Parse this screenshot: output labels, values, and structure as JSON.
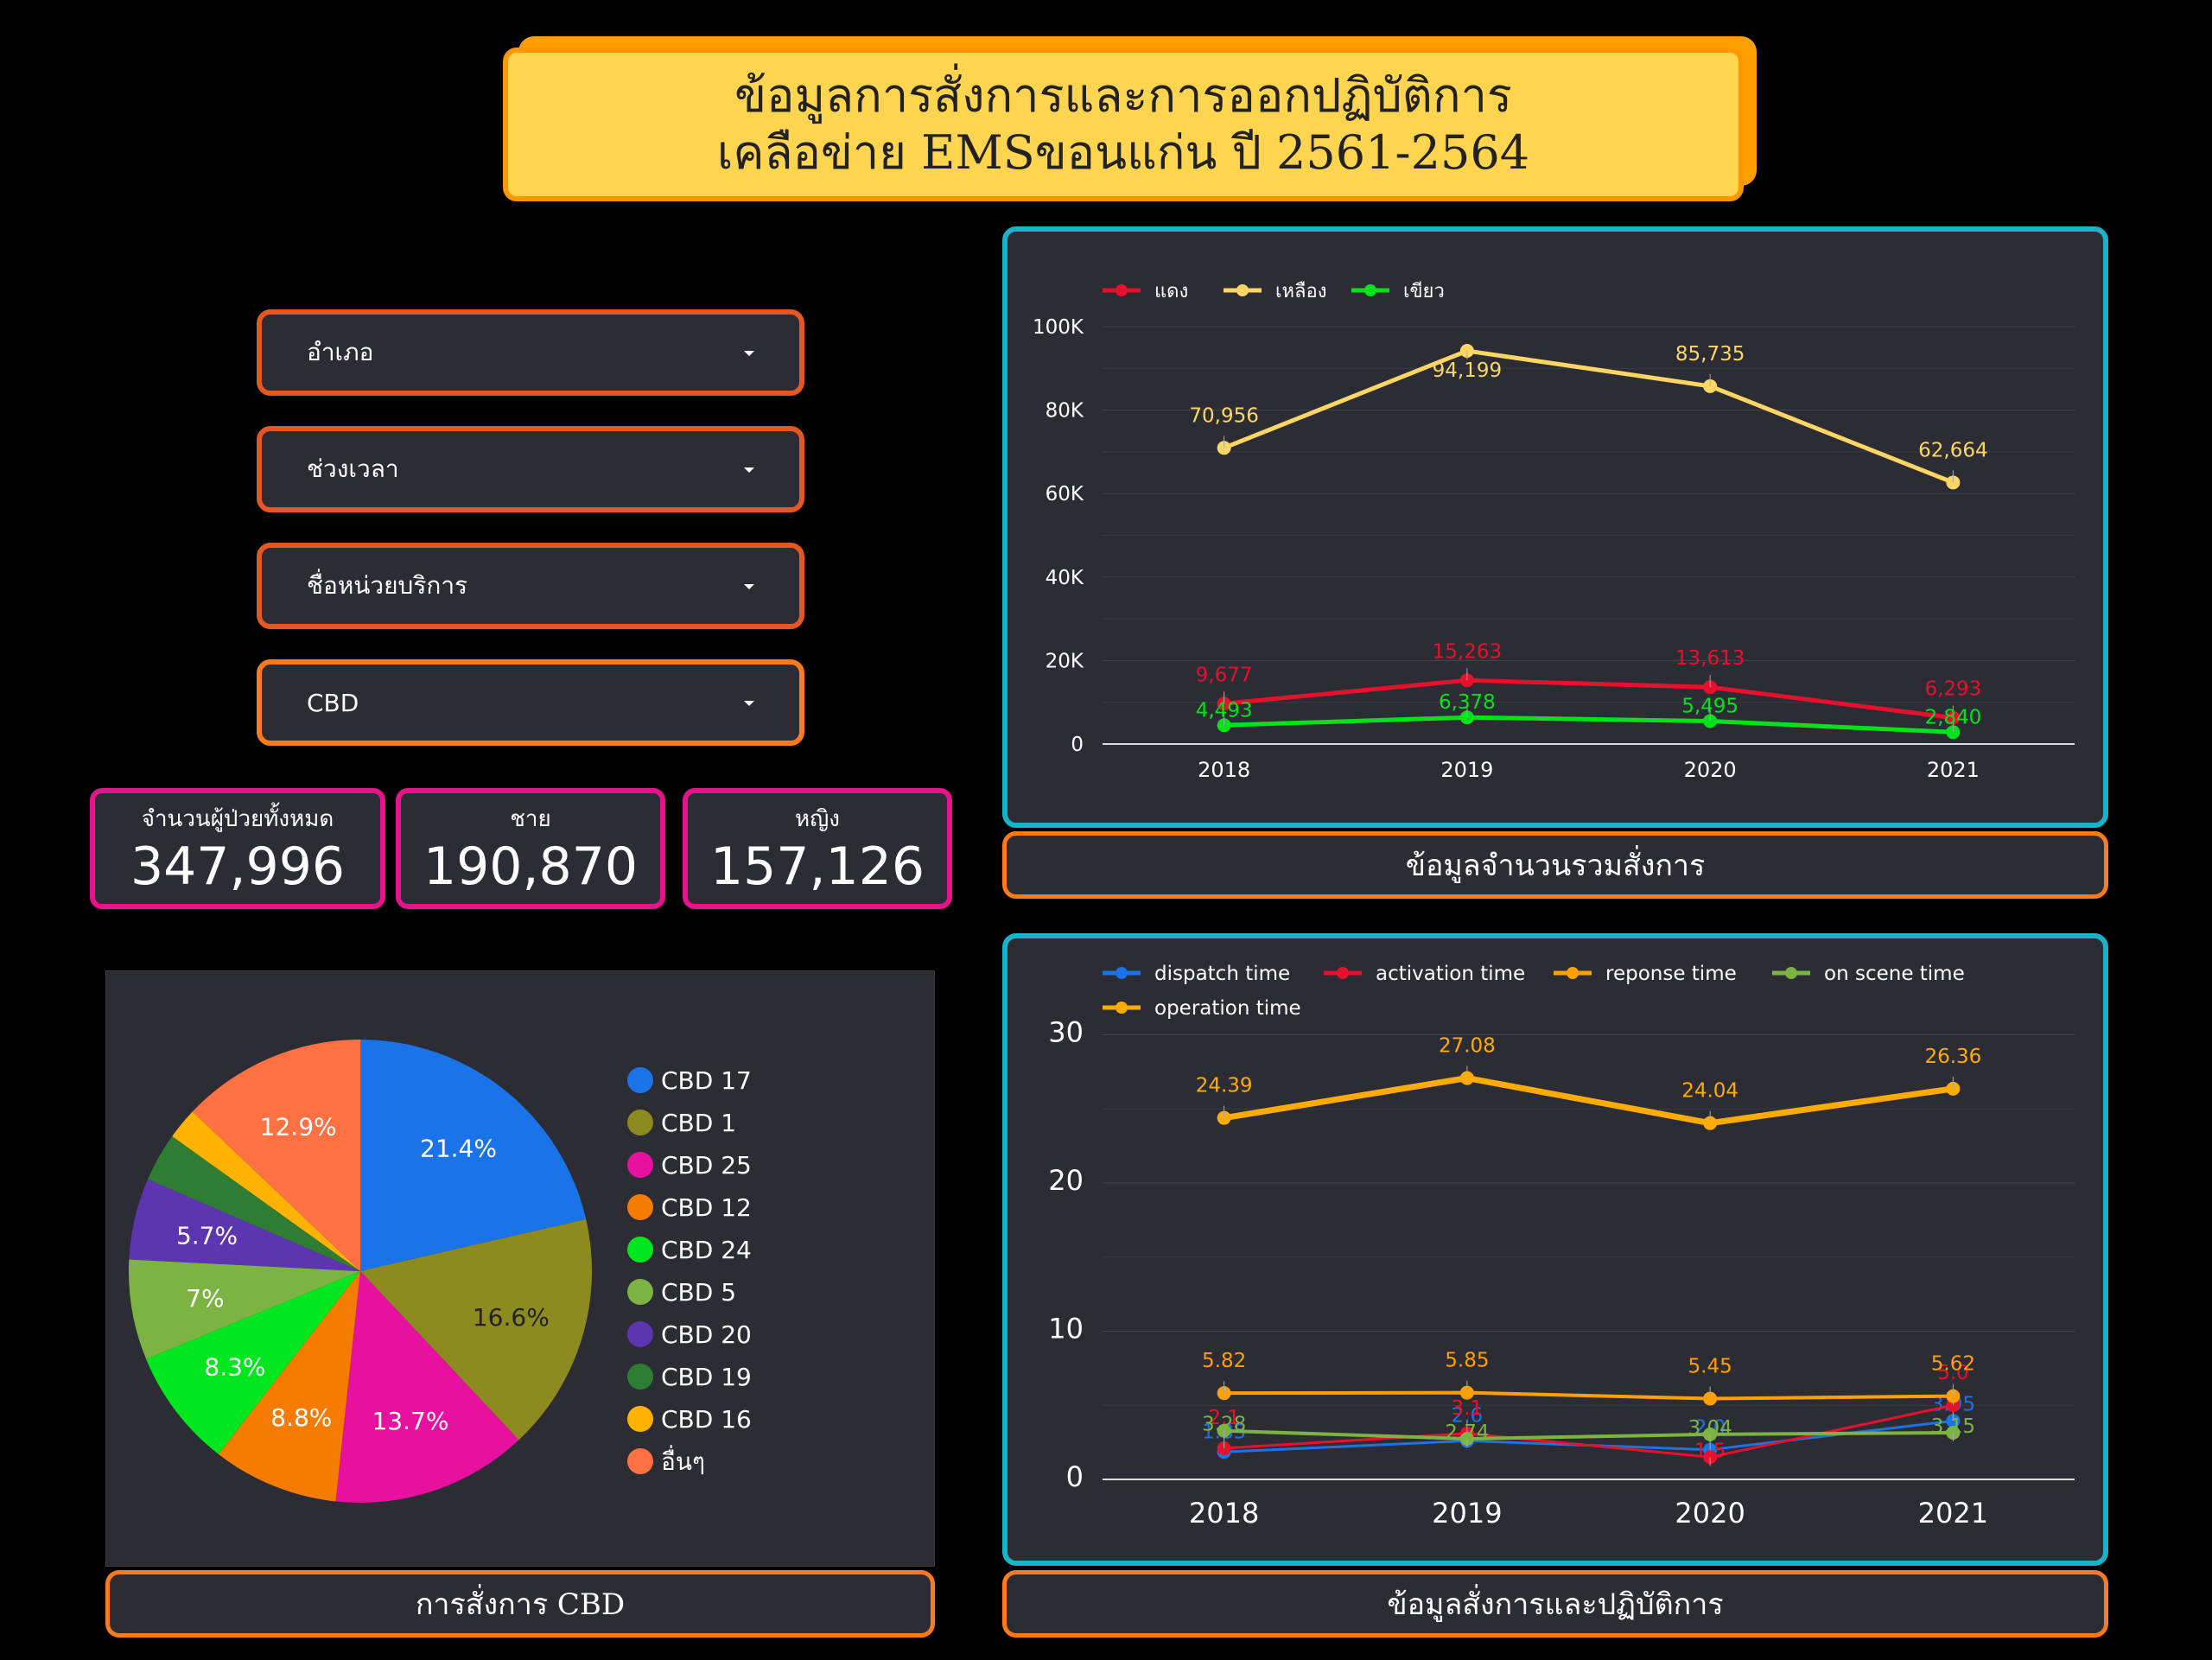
{
  "header": {
    "title_line1": "ข้อมูลการสั่งการและการออกปฏิบัติการ",
    "title_line2": "เคลือข่าย EMSขอนแก่น ปี 2561-2564"
  },
  "filters": [
    {
      "label": "อำเภอ"
    },
    {
      "label": "ช่วงเวลา"
    },
    {
      "label": "ชื่อหน่วยบริการ"
    },
    {
      "label": "CBD"
    }
  ],
  "kpis": [
    {
      "label": "จำนวนผู้ป่วยทั้งหมด",
      "value": "347,996"
    },
    {
      "label": "ชาย",
      "value": "190,870"
    },
    {
      "label": "หญิง",
      "value": "157,126"
    }
  ],
  "captions": {
    "line_chart_1": "ข้อมูลจำนวนรวมสั่งการ",
    "line_chart_2": "ข้อมูลสั่งการและปฏิบัติการ",
    "pie_chart": "การสั่งการ CBD"
  },
  "chart_data": [
    {
      "type": "line",
      "x": [
        "2018",
        "2019",
        "2020",
        "2021"
      ],
      "ylim": [
        0,
        100000
      ],
      "yticks": [
        "0",
        "20K",
        "40K",
        "60K",
        "80K",
        "100K"
      ],
      "ytick_values": [
        0,
        20000,
        40000,
        60000,
        80000,
        100000
      ],
      "legend": "top-left",
      "series": [
        {
          "name": "แดง",
          "color": "#e8112d",
          "values": [
            9677,
            15263,
            13613,
            6293
          ],
          "labels": [
            "9,677",
            "15,263",
            "13,613",
            "6,293"
          ]
        },
        {
          "name": "เหลือง",
          "color": "#fdd663",
          "values": [
            70956,
            94199,
            85735,
            62664
          ],
          "labels": [
            "70,956",
            "94,199",
            "85,735",
            "62,664"
          ]
        },
        {
          "name": "เขียว",
          "color": "#00e31b",
          "values": [
            4493,
            6378,
            5495,
            2840
          ],
          "labels": [
            "4,493",
            "6,378",
            "5,495",
            "2,840"
          ]
        }
      ]
    },
    {
      "type": "line",
      "x": [
        "2018",
        "2019",
        "2020",
        "2021"
      ],
      "ylim": [
        0,
        33
      ],
      "yticks": [
        "0",
        "10",
        "20",
        "30"
      ],
      "ytick_values": [
        0,
        10,
        20,
        30
      ],
      "legend": "top-left",
      "series": [
        {
          "name": "dispatch time",
          "color": "#1a73e8",
          "values": [
            1.85,
            2.6,
            2.0,
            3.95
          ],
          "labels": [
            "1.85",
            "2.6",
            "2.0",
            "3.95"
          ]
        },
        {
          "name": "activation time",
          "color": "#e8112d",
          "values": [
            2.1,
            3.1,
            1.5,
            5.0
          ],
          "labels": [
            "2.1",
            "3.1",
            "1.5",
            "5.0"
          ]
        },
        {
          "name": "reponse time",
          "color": "#ffa000",
          "values": [
            5.82,
            5.85,
            5.45,
            5.62
          ],
          "labels": [
            "5.82",
            "5.85",
            "5.45",
            "5.62"
          ]
        },
        {
          "name": "on scene time",
          "color": "#7cb342",
          "values": [
            3.28,
            2.74,
            3.04,
            3.15
          ],
          "labels": [
            "3.28",
            "2.74",
            "3.04",
            "3.15"
          ]
        },
        {
          "name": "operation time",
          "color": "#ffab00",
          "values": [
            24.39,
            27.08,
            24.04,
            26.36
          ],
          "labels": [
            "24.39",
            "27.08",
            "24.04",
            "26.36"
          ]
        }
      ]
    },
    {
      "type": "pie",
      "legend": "right",
      "slices": [
        {
          "name": "CBD 17",
          "value": 21.4,
          "label": "21.4%",
          "color": "#1a73e8"
        },
        {
          "name": "CBD 1",
          "value": 16.6,
          "label": "16.6%",
          "color": "#8d8a20"
        },
        {
          "name": "CBD 25",
          "value": 13.7,
          "label": "13.7%",
          "color": "#e8119f"
        },
        {
          "name": "CBD 12",
          "value": 8.8,
          "label": "8.8%",
          "color": "#f57c00"
        },
        {
          "name": "CBD 24",
          "value": 8.3,
          "label": "8.3%",
          "color": "#00e61f"
        },
        {
          "name": "CBD 5",
          "value": 7.0,
          "label": "7%",
          "color": "#7cb342"
        },
        {
          "name": "CBD 20",
          "value": 5.7,
          "label": "5.7%",
          "color": "#5e35b1"
        },
        {
          "name": "CBD 19",
          "value": 3.4,
          "label": "",
          "color": "#2e7d32"
        },
        {
          "name": "CBD 16",
          "value": 2.2,
          "label": "",
          "color": "#ffb300"
        },
        {
          "name": "อื่นๆ",
          "value": 12.9,
          "label": "12.9%",
          "color": "#ff7043"
        }
      ]
    }
  ]
}
